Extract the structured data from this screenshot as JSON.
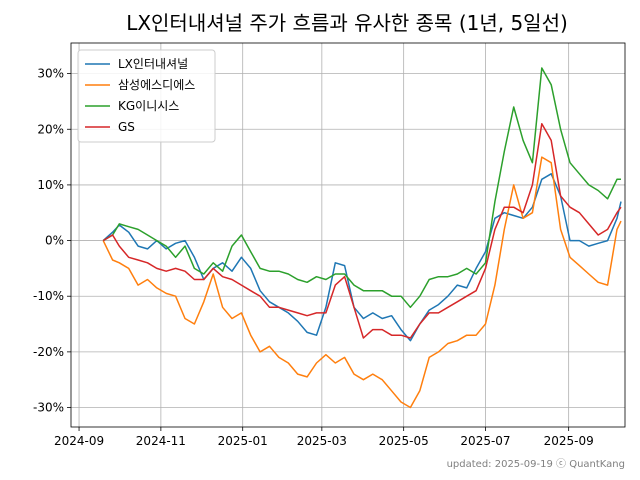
{
  "chart_data": {
    "type": "line",
    "title": "LX인터내셔널 주가 흐름과 유사한 종목 (1년, 5일선)",
    "xlabel": "",
    "ylabel": "",
    "x_ticks": [
      "2024-09",
      "2024-11",
      "2025-01",
      "2025-03",
      "2025-05",
      "2025-07",
      "2025-09"
    ],
    "y_ticks": [
      "-30%",
      "-20%",
      "-10%",
      "0%",
      "10%",
      "20%",
      "30%"
    ],
    "xlim": [
      "2024-08-26",
      "2025-10-13"
    ],
    "ylim": [
      -33.5,
      35.5
    ],
    "grid": true,
    "legend_position": "top-left",
    "footer": "updated: 2025-09-19 ⓒ QuantKang",
    "series": [
      {
        "name": "LX인터내셔널",
        "color": "#1f77b4",
        "points": [
          [
            "2024-09-19",
            0
          ],
          [
            "2024-09-26",
            1.5
          ],
          [
            "2024-10-01",
            2.8
          ],
          [
            "2024-10-08",
            1.5
          ],
          [
            "2024-10-15",
            -1
          ],
          [
            "2024-10-22",
            -1.5
          ],
          [
            "2024-10-29",
            0
          ],
          [
            "2024-11-05",
            -1.5
          ],
          [
            "2024-11-12",
            -0.5
          ],
          [
            "2024-11-19",
            0
          ],
          [
            "2024-11-26",
            -3
          ],
          [
            "2024-12-03",
            -7
          ],
          [
            "2024-12-10",
            -5
          ],
          [
            "2024-12-17",
            -4
          ],
          [
            "2024-12-24",
            -5.5
          ],
          [
            "2024-12-31",
            -3
          ],
          [
            "2025-01-07",
            -5
          ],
          [
            "2025-01-14",
            -9
          ],
          [
            "2025-01-21",
            -11
          ],
          [
            "2025-01-28",
            -12
          ],
          [
            "2025-02-04",
            -13
          ],
          [
            "2025-02-11",
            -14.5
          ],
          [
            "2025-02-18",
            -16.5
          ],
          [
            "2025-02-25",
            -17
          ],
          [
            "2025-03-04",
            -12
          ],
          [
            "2025-03-11",
            -4
          ],
          [
            "2025-03-18",
            -4.5
          ],
          [
            "2025-03-25",
            -12
          ],
          [
            "2025-04-01",
            -14
          ],
          [
            "2025-04-08",
            -13
          ],
          [
            "2025-04-15",
            -14
          ],
          [
            "2025-04-22",
            -13.5
          ],
          [
            "2025-04-29",
            -16
          ],
          [
            "2025-05-06",
            -18
          ],
          [
            "2025-05-13",
            -15
          ],
          [
            "2025-05-20",
            -12.5
          ],
          [
            "2025-05-27",
            -11.5
          ],
          [
            "2025-06-03",
            -10
          ],
          [
            "2025-06-10",
            -8
          ],
          [
            "2025-06-17",
            -8.5
          ],
          [
            "2025-06-24",
            -5
          ],
          [
            "2025-07-01",
            -2
          ],
          [
            "2025-07-08",
            4
          ],
          [
            "2025-07-15",
            5
          ],
          [
            "2025-07-22",
            4.5
          ],
          [
            "2025-07-29",
            4
          ],
          [
            "2025-08-05",
            6
          ],
          [
            "2025-08-12",
            11
          ],
          [
            "2025-08-19",
            12
          ],
          [
            "2025-08-26",
            8
          ],
          [
            "2025-09-02",
            0
          ],
          [
            "2025-09-09",
            0
          ],
          [
            "2025-09-16",
            -1
          ],
          [
            "2025-09-23",
            -0.5
          ],
          [
            "2025-09-30",
            0
          ],
          [
            "2025-10-07",
            4
          ],
          [
            "2025-10-10",
            7
          ]
        ]
      },
      {
        "name": "삼성에스디에스",
        "color": "#ff7f0e",
        "points": [
          [
            "2024-09-19",
            0
          ],
          [
            "2024-09-26",
            -3.5
          ],
          [
            "2024-10-01",
            -4
          ],
          [
            "2024-10-08",
            -5
          ],
          [
            "2024-10-15",
            -8
          ],
          [
            "2024-10-22",
            -7
          ],
          [
            "2024-10-29",
            -8.5
          ],
          [
            "2024-11-05",
            -9.5
          ],
          [
            "2024-11-12",
            -10
          ],
          [
            "2024-11-19",
            -14
          ],
          [
            "2024-11-26",
            -15
          ],
          [
            "2024-12-03",
            -11
          ],
          [
            "2024-12-10",
            -6
          ],
          [
            "2024-12-17",
            -12
          ],
          [
            "2024-12-24",
            -14
          ],
          [
            "2024-12-31",
            -13
          ],
          [
            "2025-01-07",
            -17
          ],
          [
            "2025-01-14",
            -20
          ],
          [
            "2025-01-21",
            -19
          ],
          [
            "2025-01-28",
            -21
          ],
          [
            "2025-02-04",
            -22
          ],
          [
            "2025-02-11",
            -24
          ],
          [
            "2025-02-18",
            -24.5
          ],
          [
            "2025-02-25",
            -22
          ],
          [
            "2025-03-04",
            -20.5
          ],
          [
            "2025-03-11",
            -22
          ],
          [
            "2025-03-18",
            -21
          ],
          [
            "2025-03-25",
            -24
          ],
          [
            "2025-04-01",
            -25
          ],
          [
            "2025-04-08",
            -24
          ],
          [
            "2025-04-15",
            -25
          ],
          [
            "2025-04-22",
            -27
          ],
          [
            "2025-04-29",
            -29
          ],
          [
            "2025-05-06",
            -30
          ],
          [
            "2025-05-13",
            -27
          ],
          [
            "2025-05-20",
            -21
          ],
          [
            "2025-05-27",
            -20
          ],
          [
            "2025-06-03",
            -18.5
          ],
          [
            "2025-06-10",
            -18
          ],
          [
            "2025-06-17",
            -17
          ],
          [
            "2025-06-24",
            -17
          ],
          [
            "2025-07-01",
            -15
          ],
          [
            "2025-07-08",
            -8
          ],
          [
            "2025-07-15",
            2
          ],
          [
            "2025-07-22",
            10
          ],
          [
            "2025-07-29",
            4
          ],
          [
            "2025-08-05",
            5
          ],
          [
            "2025-08-12",
            15
          ],
          [
            "2025-08-19",
            14
          ],
          [
            "2025-08-26",
            2
          ],
          [
            "2025-09-02",
            -3
          ],
          [
            "2025-09-09",
            -4.5
          ],
          [
            "2025-09-16",
            -6
          ],
          [
            "2025-09-23",
            -7.5
          ],
          [
            "2025-09-30",
            -8
          ],
          [
            "2025-10-07",
            2
          ],
          [
            "2025-10-10",
            3.5
          ]
        ]
      },
      {
        "name": "KG이니시스",
        "color": "#2ca02c",
        "points": [
          [
            "2024-09-19",
            0
          ],
          [
            "2024-09-26",
            1
          ],
          [
            "2024-10-01",
            3
          ],
          [
            "2024-10-08",
            2.5
          ],
          [
            "2024-10-15",
            2
          ],
          [
            "2024-10-22",
            1
          ],
          [
            "2024-10-29",
            0
          ],
          [
            "2024-11-05",
            -1
          ],
          [
            "2024-11-12",
            -3
          ],
          [
            "2024-11-19",
            -1
          ],
          [
            "2024-11-26",
            -5
          ],
          [
            "2024-12-03",
            -6
          ],
          [
            "2024-12-10",
            -4
          ],
          [
            "2024-12-17",
            -5.5
          ],
          [
            "2024-12-24",
            -1
          ],
          [
            "2024-12-31",
            1
          ],
          [
            "2025-01-07",
            -2
          ],
          [
            "2025-01-14",
            -5
          ],
          [
            "2025-01-21",
            -5.5
          ],
          [
            "2025-01-28",
            -5.5
          ],
          [
            "2025-02-04",
            -6
          ],
          [
            "2025-02-11",
            -7
          ],
          [
            "2025-02-18",
            -7.5
          ],
          [
            "2025-02-25",
            -6.5
          ],
          [
            "2025-03-04",
            -7
          ],
          [
            "2025-03-11",
            -6
          ],
          [
            "2025-03-18",
            -6
          ],
          [
            "2025-03-25",
            -8
          ],
          [
            "2025-04-01",
            -9
          ],
          [
            "2025-04-08",
            -9
          ],
          [
            "2025-04-15",
            -9
          ],
          [
            "2025-04-22",
            -10
          ],
          [
            "2025-04-29",
            -10
          ],
          [
            "2025-05-06",
            -12
          ],
          [
            "2025-05-13",
            -10
          ],
          [
            "2025-05-20",
            -7
          ],
          [
            "2025-05-27",
            -6.5
          ],
          [
            "2025-06-03",
            -6.5
          ],
          [
            "2025-06-10",
            -6
          ],
          [
            "2025-06-17",
            -5
          ],
          [
            "2025-06-24",
            -6
          ],
          [
            "2025-07-01",
            -4
          ],
          [
            "2025-07-08",
            7
          ],
          [
            "2025-07-15",
            16
          ],
          [
            "2025-07-22",
            24
          ],
          [
            "2025-07-29",
            18
          ],
          [
            "2025-08-05",
            14
          ],
          [
            "2025-08-12",
            31
          ],
          [
            "2025-08-19",
            28
          ],
          [
            "2025-08-26",
            20
          ],
          [
            "2025-09-02",
            14
          ],
          [
            "2025-09-09",
            12
          ],
          [
            "2025-09-16",
            10
          ],
          [
            "2025-09-23",
            9
          ],
          [
            "2025-09-30",
            7.5
          ],
          [
            "2025-10-07",
            11
          ],
          [
            "2025-10-10",
            11
          ]
        ]
      },
      {
        "name": "GS",
        "color": "#d62728",
        "points": [
          [
            "2024-09-19",
            0
          ],
          [
            "2024-09-26",
            1
          ],
          [
            "2024-10-01",
            -1
          ],
          [
            "2024-10-08",
            -3
          ],
          [
            "2024-10-15",
            -3.5
          ],
          [
            "2024-10-22",
            -4
          ],
          [
            "2024-10-29",
            -5
          ],
          [
            "2024-11-05",
            -5.5
          ],
          [
            "2024-11-12",
            -5
          ],
          [
            "2024-11-19",
            -5.5
          ],
          [
            "2024-11-26",
            -7
          ],
          [
            "2024-12-03",
            -7
          ],
          [
            "2024-12-10",
            -5
          ],
          [
            "2024-12-17",
            -6.5
          ],
          [
            "2024-12-24",
            -7
          ],
          [
            "2024-12-31",
            -8
          ],
          [
            "2025-01-07",
            -9
          ],
          [
            "2025-01-14",
            -10
          ],
          [
            "2025-01-21",
            -12
          ],
          [
            "2025-01-28",
            -12
          ],
          [
            "2025-02-04",
            -12.5
          ],
          [
            "2025-02-11",
            -13
          ],
          [
            "2025-02-18",
            -13.5
          ],
          [
            "2025-02-25",
            -13
          ],
          [
            "2025-03-04",
            -13
          ],
          [
            "2025-03-11",
            -8
          ],
          [
            "2025-03-18",
            -6.5
          ],
          [
            "2025-03-25",
            -12
          ],
          [
            "2025-04-01",
            -17.5
          ],
          [
            "2025-04-08",
            -16
          ],
          [
            "2025-04-15",
            -16
          ],
          [
            "2025-04-22",
            -17
          ],
          [
            "2025-04-29",
            -17
          ],
          [
            "2025-05-06",
            -17.5
          ],
          [
            "2025-05-13",
            -15
          ],
          [
            "2025-05-20",
            -13
          ],
          [
            "2025-05-27",
            -13
          ],
          [
            "2025-06-03",
            -12
          ],
          [
            "2025-06-10",
            -11
          ],
          [
            "2025-06-17",
            -10
          ],
          [
            "2025-06-24",
            -9
          ],
          [
            "2025-07-01",
            -5
          ],
          [
            "2025-07-08",
            2
          ],
          [
            "2025-07-15",
            6
          ],
          [
            "2025-07-22",
            6
          ],
          [
            "2025-07-29",
            5
          ],
          [
            "2025-08-05",
            10
          ],
          [
            "2025-08-12",
            21
          ],
          [
            "2025-08-19",
            18
          ],
          [
            "2025-08-26",
            8
          ],
          [
            "2025-09-02",
            6
          ],
          [
            "2025-09-09",
            5
          ],
          [
            "2025-09-16",
            3
          ],
          [
            "2025-09-23",
            1
          ],
          [
            "2025-09-30",
            2
          ],
          [
            "2025-10-07",
            5
          ],
          [
            "2025-10-10",
            6
          ]
        ]
      }
    ]
  }
}
